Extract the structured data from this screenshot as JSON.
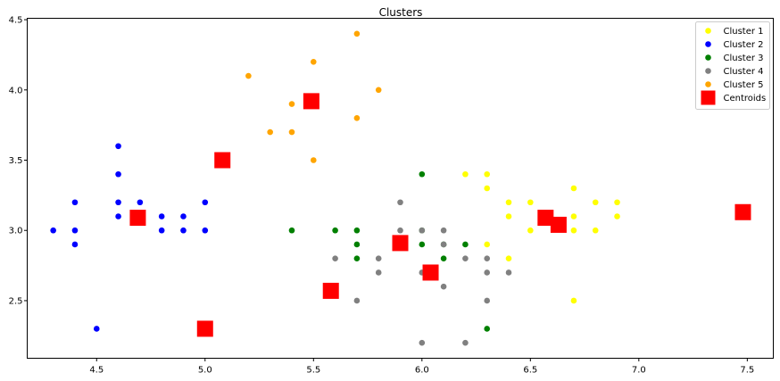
{
  "chart_data": {
    "type": "scatter",
    "title": "Clusters",
    "xlabel": "",
    "ylabel": "",
    "xlim": [
      4.18,
      7.62
    ],
    "ylim": [
      2.09,
      4.51
    ],
    "xticks": [
      4.5,
      5.0,
      5.5,
      6.0,
      6.5,
      7.0,
      7.5
    ],
    "xtick_labels": [
      "4.5",
      "5.0",
      "5.5",
      "6.0",
      "6.5",
      "7.0",
      "7.5"
    ],
    "yticks": [
      2.5,
      3.0,
      3.5,
      4.0,
      4.5
    ],
    "ytick_labels": [
      "2.5",
      "3.0",
      "3.5",
      "4.0",
      "4.5"
    ],
    "grid": false,
    "legend_position": "top-right",
    "series": [
      {
        "name": "Cluster 1",
        "color": "#ffff00",
        "marker": "circle",
        "points": [
          [
            6.2,
            3.4
          ],
          [
            6.3,
            3.4
          ],
          [
            6.3,
            3.3
          ],
          [
            6.4,
            3.2
          ],
          [
            6.5,
            3.2
          ],
          [
            6.7,
            3.3
          ],
          [
            6.8,
            3.2
          ],
          [
            6.9,
            3.2
          ],
          [
            6.4,
            3.1
          ],
          [
            6.7,
            3.1
          ],
          [
            6.9,
            3.1
          ],
          [
            6.5,
            3.0
          ],
          [
            6.7,
            3.0
          ],
          [
            6.8,
            3.0
          ],
          [
            6.3,
            2.9
          ],
          [
            6.4,
            2.8
          ],
          [
            6.7,
            2.5
          ]
        ]
      },
      {
        "name": "Cluster 2",
        "color": "#0000ff",
        "marker": "circle",
        "points": [
          [
            4.6,
            3.6
          ],
          [
            4.6,
            3.4
          ],
          [
            4.4,
            3.2
          ],
          [
            4.6,
            3.2
          ],
          [
            4.7,
            3.2
          ],
          [
            5.0,
            3.2
          ],
          [
            4.6,
            3.1
          ],
          [
            4.8,
            3.1
          ],
          [
            4.9,
            3.1
          ],
          [
            4.3,
            3.0
          ],
          [
            4.4,
            3.0
          ],
          [
            4.8,
            3.0
          ],
          [
            4.9,
            3.0
          ],
          [
            5.0,
            3.0
          ],
          [
            4.4,
            2.9
          ],
          [
            4.5,
            2.3
          ]
        ]
      },
      {
        "name": "Cluster 3",
        "color": "#008000",
        "marker": "circle",
        "points": [
          [
            6.0,
            3.4
          ],
          [
            5.4,
            3.0
          ],
          [
            5.6,
            3.0
          ],
          [
            5.7,
            3.0
          ],
          [
            6.0,
            3.0
          ],
          [
            5.7,
            2.9
          ],
          [
            6.0,
            2.9
          ],
          [
            6.1,
            2.9
          ],
          [
            6.2,
            2.9
          ],
          [
            5.7,
            2.8
          ],
          [
            6.1,
            2.8
          ],
          [
            6.3,
            2.3
          ]
        ]
      },
      {
        "name": "Cluster 4",
        "color": "#808080",
        "marker": "circle",
        "points": [
          [
            5.9,
            3.2
          ],
          [
            5.9,
            3.0
          ],
          [
            6.0,
            3.0
          ],
          [
            6.1,
            3.0
          ],
          [
            6.1,
            2.9
          ],
          [
            5.6,
            2.8
          ],
          [
            5.8,
            2.8
          ],
          [
            6.2,
            2.8
          ],
          [
            6.3,
            2.8
          ],
          [
            5.8,
            2.7
          ],
          [
            6.0,
            2.7
          ],
          [
            6.3,
            2.7
          ],
          [
            6.4,
            2.7
          ],
          [
            6.1,
            2.6
          ],
          [
            5.7,
            2.5
          ],
          [
            6.3,
            2.5
          ],
          [
            6.0,
            2.2
          ],
          [
            6.2,
            2.2
          ]
        ]
      },
      {
        "name": "Cluster 5",
        "color": "#ffa500",
        "marker": "circle",
        "points": [
          [
            5.7,
            4.4
          ],
          [
            5.5,
            4.2
          ],
          [
            5.2,
            4.1
          ],
          [
            5.8,
            4.0
          ],
          [
            5.4,
            3.9
          ],
          [
            5.7,
            3.8
          ],
          [
            5.3,
            3.7
          ],
          [
            5.4,
            3.7
          ],
          [
            5.5,
            3.5
          ]
        ]
      },
      {
        "name": "Centroids",
        "color": "#ff0000",
        "marker": "square",
        "points": [
          [
            5.49,
            3.92
          ],
          [
            5.08,
            3.5
          ],
          [
            4.69,
            3.09
          ],
          [
            6.57,
            3.09
          ],
          [
            6.63,
            3.04
          ],
          [
            7.48,
            3.13
          ],
          [
            5.9,
            2.91
          ],
          [
            6.04,
            2.7
          ],
          [
            5.58,
            2.57
          ],
          [
            5.0,
            2.3
          ]
        ]
      }
    ]
  }
}
